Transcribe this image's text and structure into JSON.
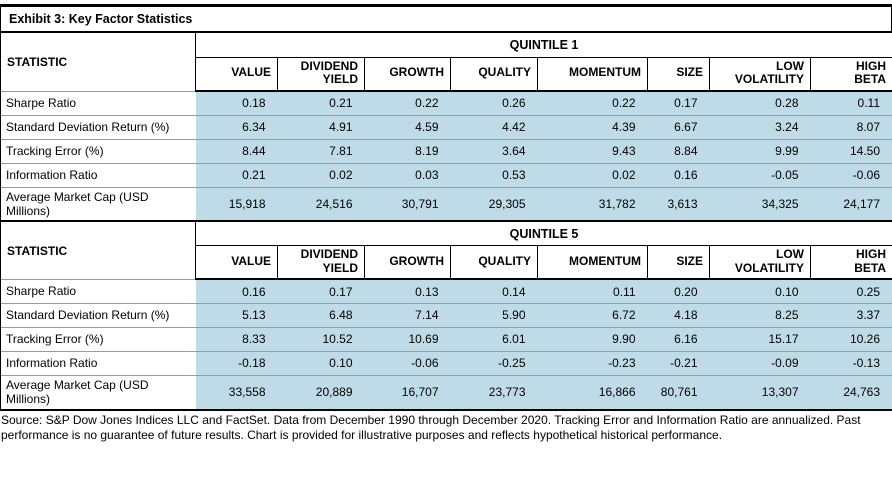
{
  "title": "Exhibit 3: Key Factor Statistics",
  "statistic_header": "STATISTIC",
  "columns": [
    "VALUE",
    "DIVIDEND\nYIELD",
    "GROWTH",
    "QUALITY",
    "MOMENTUM",
    "SIZE",
    "LOW\nVOLATILITY",
    "HIGH\nBETA"
  ],
  "sections": [
    {
      "name": "QUINTILE 1",
      "rows": [
        {
          "label": "Sharpe Ratio",
          "values": [
            "0.18",
            "0.21",
            "0.22",
            "0.26",
            "0.22",
            "0.17",
            "0.28",
            "0.11"
          ]
        },
        {
          "label": "Standard Deviation Return (%)",
          "values": [
            "6.34",
            "4.91",
            "4.59",
            "4.42",
            "4.39",
            "6.67",
            "3.24",
            "8.07"
          ]
        },
        {
          "label": "Tracking Error (%)",
          "values": [
            "8.44",
            "7.81",
            "8.19",
            "3.64",
            "9.43",
            "8.84",
            "9.99",
            "14.50"
          ]
        },
        {
          "label": "Information Ratio",
          "values": [
            "0.21",
            "0.02",
            "0.03",
            "0.53",
            "0.02",
            "0.16",
            "-0.05",
            "-0.06"
          ]
        },
        {
          "label": "Average Market Cap (USD Millions)",
          "values": [
            "15,918",
            "24,516",
            "30,791",
            "29,305",
            "31,782",
            "3,613",
            "34,325",
            "24,177"
          ]
        }
      ]
    },
    {
      "name": "QUINTILE 5",
      "rows": [
        {
          "label": "Sharpe Ratio",
          "values": [
            "0.16",
            "0.17",
            "0.13",
            "0.14",
            "0.11",
            "0.20",
            "0.10",
            "0.25"
          ]
        },
        {
          "label": "Standard Deviation Return (%)",
          "values": [
            "5.13",
            "6.48",
            "7.14",
            "5.90",
            "6.72",
            "4.18",
            "8.25",
            "3.37"
          ]
        },
        {
          "label": "Tracking Error (%)",
          "values": [
            "8.33",
            "10.52",
            "10.69",
            "6.01",
            "9.90",
            "6.16",
            "15.17",
            "10.26"
          ]
        },
        {
          "label": "Information Ratio",
          "values": [
            "-0.18",
            "0.10",
            "-0.06",
            "-0.25",
            "-0.23",
            "-0.21",
            "-0.09",
            "-0.13"
          ]
        },
        {
          "label": "Average Market Cap (USD Millions)",
          "values": [
            "33,558",
            "20,889",
            "16,707",
            "23,773",
            "16,866",
            "80,761",
            "13,307",
            "24,763"
          ]
        }
      ]
    }
  ],
  "footer": "Source: S&P Dow Jones Indices LLC and FactSet. Data from December 1990 through December 2020. Tracking Error and Information Ratio are annualized. Past performance is no guarantee of future results. Chart is provided for illustrative purposes and reflects hypothetical historical performance.",
  "colors": {
    "cell_bg": "#BFDBE7",
    "row_divider": "#9b9b9b",
    "border": "#000000"
  }
}
